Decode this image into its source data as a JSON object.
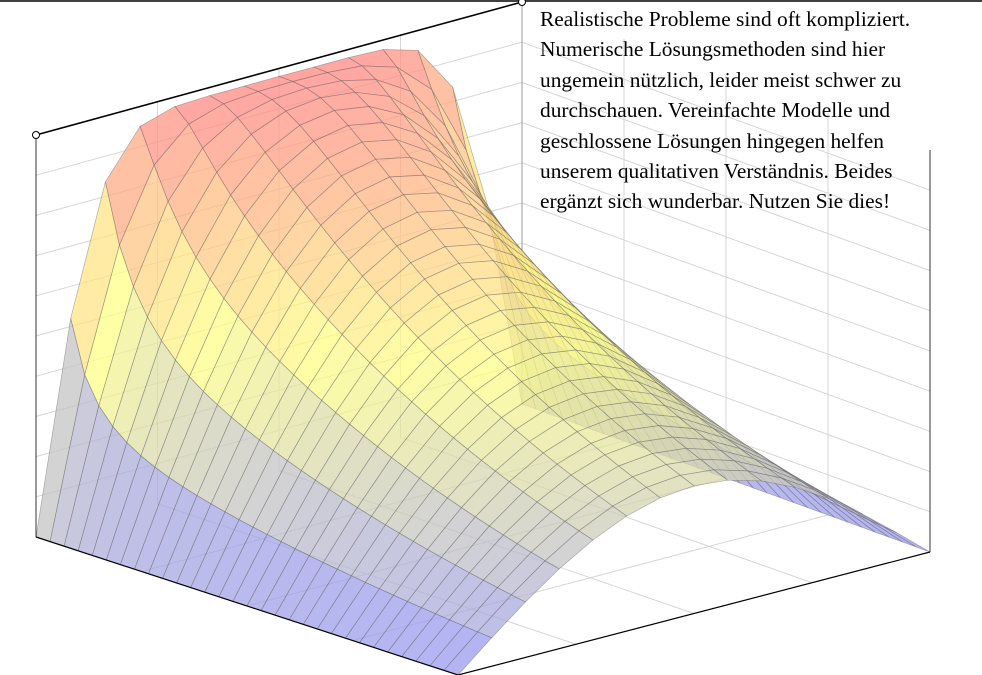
{
  "caption": {
    "lines": [
      "Realistische Probleme sind oft kompliziert.",
      "Numerische Lösungsmethoden sind hier",
      "ungemein nützlich, leider meist schwer zu",
      "durchschauen. Vereinfachte Modelle und",
      "geschlossene Lösungen hingegen helfen",
      "unserem qualitativen Verständnis. Beides",
      "ergänzt sich wunderbar. Nutzen Sie dies!"
    ]
  },
  "plot": {
    "type": "3d-surface",
    "grid": true,
    "colormap": [
      "#8f8ff7",
      "#ffff82",
      "#ff7f7f"
    ]
  }
}
